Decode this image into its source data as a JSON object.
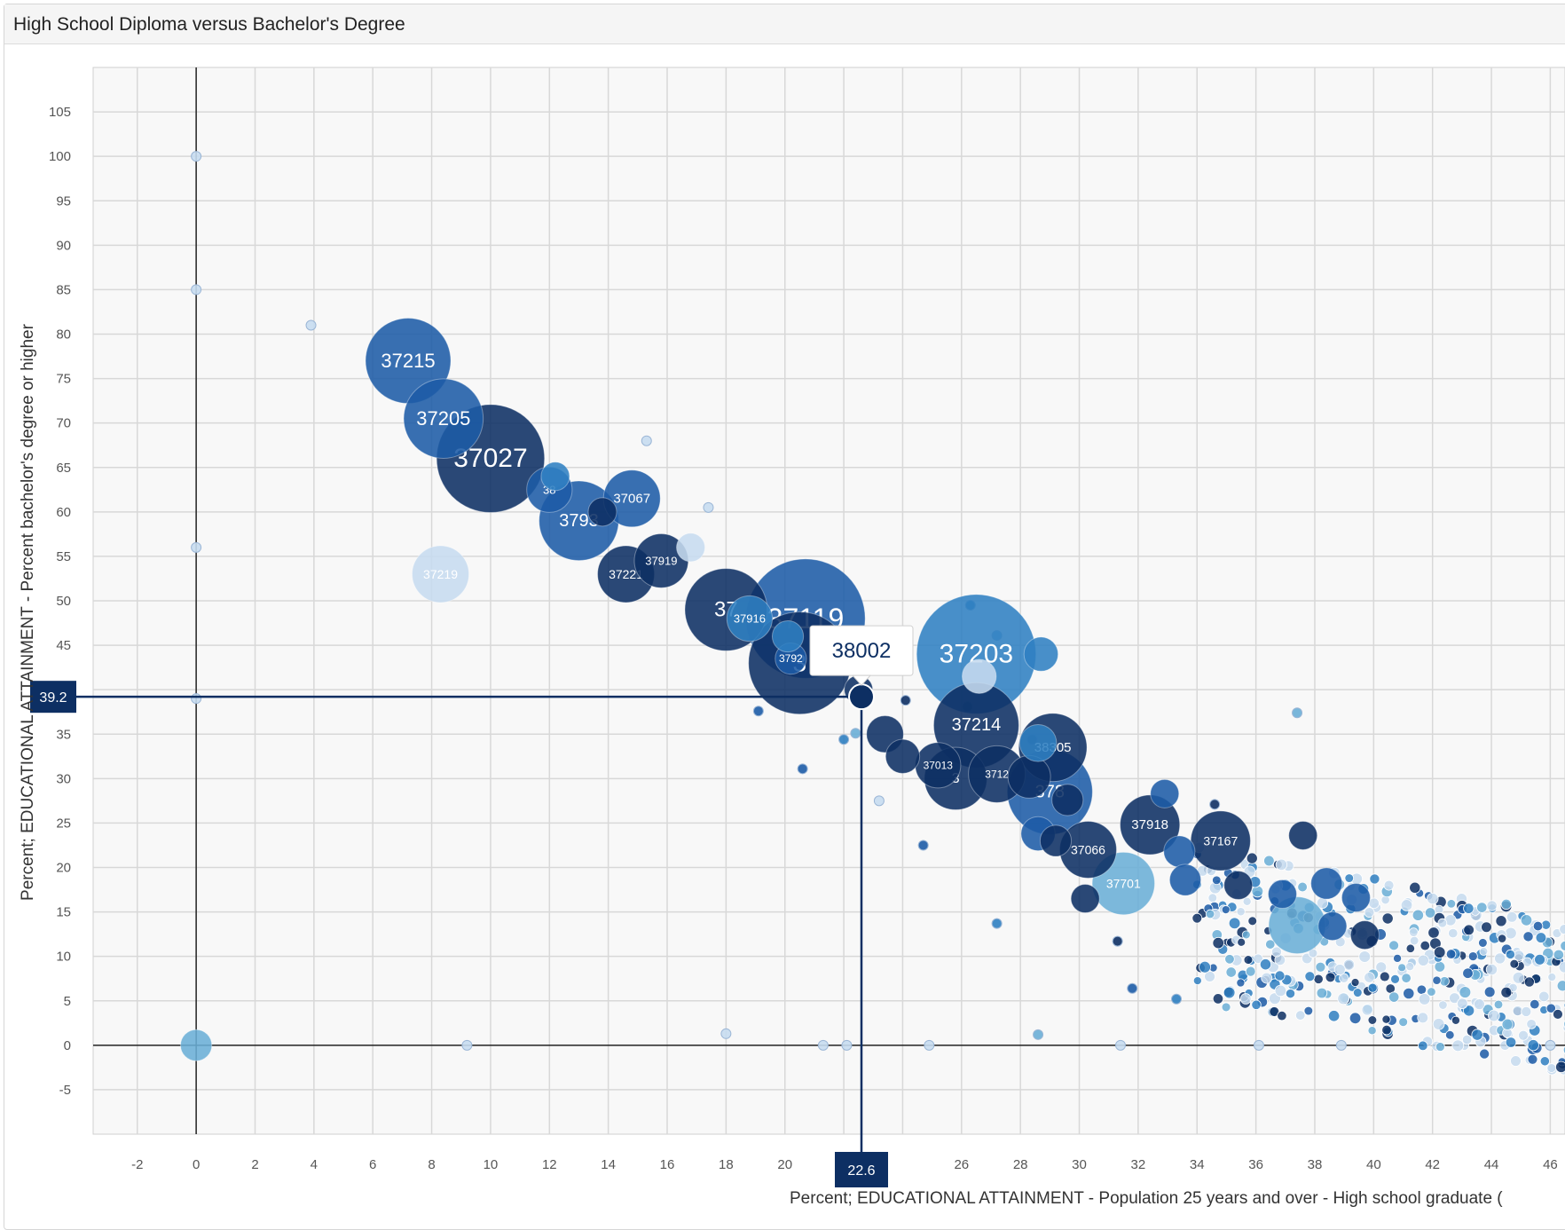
{
  "panel": {
    "title": "High School Diploma versus Bachelor's Degree"
  },
  "chart_data": {
    "type": "scatter",
    "title": "High School Diploma versus Bachelor's Degree",
    "xlabel": "Percent; EDUCATIONAL ATTAINMENT - Population 25 years and over - High school graduate (",
    "ylabel": "Percent; EDUCATIONAL ATTAINMENT - Percent bachelor's degree or higher",
    "xlim": [
      -3.5,
      46.5
    ],
    "ylim": [
      -10,
      110
    ],
    "x_ticks": [
      -2,
      0,
      2,
      4,
      6,
      8,
      10,
      12,
      14,
      16,
      18,
      20,
      22,
      24,
      26,
      28,
      30,
      32,
      34,
      36,
      38,
      40,
      42,
      44,
      46
    ],
    "y_ticks": [
      -5,
      0,
      5,
      10,
      15,
      20,
      25,
      30,
      35,
      40,
      45,
      50,
      55,
      60,
      65,
      70,
      75,
      80,
      85,
      90,
      95,
      100,
      105
    ],
    "grid": true,
    "colors": {
      "dark": "#0d2f63",
      "mid": "#1c5ba6",
      "blue": "#2f7fc1",
      "light": "#6aaed6",
      "pale": "#c6dbef"
    },
    "crosshair": {
      "x": 22.6,
      "y": 39.2,
      "x_label": "22.6",
      "y_label": "39.2",
      "tooltip": "38002"
    },
    "points": [
      {
        "x": 7.2,
        "y": 77,
        "size": 3.0,
        "c": "mid",
        "label": "37215",
        "fs": 22
      },
      {
        "x": 8.4,
        "y": 70.5,
        "size": 2.8,
        "c": "mid",
        "label": "37205",
        "fs": 22
      },
      {
        "x": 10,
        "y": 66,
        "size": 3.8,
        "c": "dark",
        "label": "37027",
        "fs": 30
      },
      {
        "x": 12,
        "y": 62.5,
        "size": 1.6,
        "c": "mid",
        "label": "38",
        "fs": 13
      },
      {
        "x": 12.2,
        "y": 64,
        "size": 1.0,
        "c": "blue",
        "label": "",
        "fs": 0
      },
      {
        "x": 13,
        "y": 59,
        "size": 2.8,
        "c": "mid",
        "label": "3793",
        "fs": 20
      },
      {
        "x": 14.8,
        "y": 61.5,
        "size": 2.0,
        "c": "mid",
        "label": "37067",
        "fs": 15
      },
      {
        "x": 13.8,
        "y": 60,
        "size": 1.0,
        "c": "dark",
        "label": "",
        "fs": 0
      },
      {
        "x": 8.3,
        "y": 53,
        "size": 2.0,
        "c": "pale",
        "label": "37219",
        "fs": 14
      },
      {
        "x": 14.6,
        "y": 53,
        "size": 2.0,
        "c": "dark",
        "label": "37221",
        "fs": 14
      },
      {
        "x": 15.8,
        "y": 54.5,
        "size": 1.9,
        "c": "dark",
        "label": "37919",
        "fs": 13
      },
      {
        "x": 16.8,
        "y": 56,
        "size": 1.0,
        "c": "pale",
        "label": "",
        "fs": 0
      },
      {
        "x": 18,
        "y": 49,
        "size": 2.9,
        "c": "dark",
        "label": "37",
        "fs": 24
      },
      {
        "x": 18.8,
        "y": 48,
        "size": 1.6,
        "c": "blue",
        "label": "37916",
        "fs": 13
      },
      {
        "x": 20.7,
        "y": 48,
        "size": 4.2,
        "c": "mid",
        "label": "37119",
        "fs": 32
      },
      {
        "x": 20.5,
        "y": 43,
        "size": 3.6,
        "c": "dark",
        "label": "3",
        "fs": 28
      },
      {
        "x": 20.2,
        "y": 43.5,
        "size": 1.1,
        "c": "mid",
        "label": "3792",
        "fs": 12
      },
      {
        "x": 20.1,
        "y": 46,
        "size": 1.1,
        "c": "blue",
        "label": "",
        "fs": 0
      },
      {
        "x": 22.5,
        "y": 40,
        "size": 1.0,
        "c": "dark",
        "label": "",
        "fs": 0
      },
      {
        "x": 26.5,
        "y": 44,
        "size": 4.2,
        "c": "blue",
        "label": "37203",
        "fs": 30
      },
      {
        "x": 26.6,
        "y": 41.5,
        "size": 1.2,
        "c": "pale",
        "label": "",
        "fs": 0
      },
      {
        "x": 28.7,
        "y": 44,
        "size": 1.2,
        "c": "blue",
        "label": "",
        "fs": 0
      },
      {
        "x": 26.5,
        "y": 36,
        "size": 3.0,
        "c": "dark",
        "label": "37214",
        "fs": 20
      },
      {
        "x": 23.4,
        "y": 35,
        "size": 1.3,
        "c": "dark",
        "label": "",
        "fs": 0
      },
      {
        "x": 24,
        "y": 32.5,
        "size": 1.2,
        "c": "dark",
        "label": "",
        "fs": 0
      },
      {
        "x": 25.2,
        "y": 31.5,
        "size": 1.6,
        "c": "dark",
        "label": "37013",
        "fs": 12
      },
      {
        "x": 25.8,
        "y": 30,
        "size": 2.2,
        "c": "dark",
        "label": "3",
        "fs": 16
      },
      {
        "x": 27.2,
        "y": 30.5,
        "size": 2.0,
        "c": "dark",
        "label": "3712",
        "fs": 12
      },
      {
        "x": 29.1,
        "y": 33.5,
        "size": 2.4,
        "c": "dark",
        "label": "38305",
        "fs": 15
      },
      {
        "x": 28.6,
        "y": 34,
        "size": 1.3,
        "c": "blue",
        "label": "",
        "fs": 0
      },
      {
        "x": 29,
        "y": 28.5,
        "size": 3.0,
        "c": "mid",
        "label": "378",
        "fs": 20
      },
      {
        "x": 28.3,
        "y": 30.2,
        "size": 1.5,
        "c": "dark",
        "label": "",
        "fs": 0
      },
      {
        "x": 29.6,
        "y": 27.6,
        "size": 1.1,
        "c": "dark",
        "label": "",
        "fs": 0
      },
      {
        "x": 30.3,
        "y": 22,
        "size": 2.0,
        "c": "dark",
        "label": "37066",
        "fs": 14
      },
      {
        "x": 28.6,
        "y": 23.8,
        "size": 1.2,
        "c": "mid",
        "label": "",
        "fs": 0
      },
      {
        "x": 29.2,
        "y": 23,
        "size": 1.1,
        "c": "dark",
        "label": "",
        "fs": 0
      },
      {
        "x": 31.5,
        "y": 18.2,
        "size": 2.2,
        "c": "light",
        "label": "37701",
        "fs": 14
      },
      {
        "x": 30.2,
        "y": 16.5,
        "size": 1.0,
        "c": "dark",
        "label": "",
        "fs": 0
      },
      {
        "x": 32.4,
        "y": 24.8,
        "size": 2.1,
        "c": "dark",
        "label": "37918",
        "fs": 15
      },
      {
        "x": 32.9,
        "y": 28.3,
        "size": 1.0,
        "c": "mid",
        "label": "",
        "fs": 0
      },
      {
        "x": 33.4,
        "y": 21.8,
        "size": 1.1,
        "c": "mid",
        "label": "",
        "fs": 0
      },
      {
        "x": 33.6,
        "y": 18.6,
        "size": 1.1,
        "c": "mid",
        "label": "",
        "fs": 0
      },
      {
        "x": 34.8,
        "y": 23,
        "size": 2.1,
        "c": "dark",
        "label": "37167",
        "fs": 14
      },
      {
        "x": 35.4,
        "y": 18,
        "size": 1.0,
        "c": "dark",
        "label": "",
        "fs": 0
      },
      {
        "x": 37.6,
        "y": 23.6,
        "size": 1.0,
        "c": "dark",
        "label": "",
        "fs": 0
      },
      {
        "x": 36.9,
        "y": 17,
        "size": 1.0,
        "c": "mid",
        "label": "",
        "fs": 0
      },
      {
        "x": 37.4,
        "y": 13.5,
        "size": 2.0,
        "c": "light",
        "label": "",
        "fs": 0
      },
      {
        "x": 38.4,
        "y": 18.2,
        "size": 1.1,
        "c": "mid",
        "label": "",
        "fs": 0
      },
      {
        "x": 38.6,
        "y": 13.4,
        "size": 1.0,
        "c": "mid",
        "label": "",
        "fs": 0
      },
      {
        "x": 39.4,
        "y": 16.6,
        "size": 1.0,
        "c": "mid",
        "label": "",
        "fs": 0
      },
      {
        "x": 39.7,
        "y": 12.4,
        "size": 1.0,
        "c": "dark",
        "label": "",
        "fs": 0
      },
      {
        "x": 0,
        "y": 0,
        "size": 1.1,
        "c": "light",
        "label": "",
        "fs": 0
      }
    ]
  }
}
